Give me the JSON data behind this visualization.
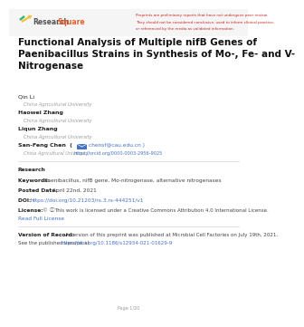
{
  "page_bg": "#ffffff",
  "header_bg": "#f7f7f7",
  "title": "Functional Analysis of Multiple nifB Genes of\nPaenibacillus Strains in Synthesis of Mo-, Fe- and V-\nNitrogenase",
  "title_fontsize": 7.5,
  "title_color": "#111111",
  "header_note_lines": [
    "Preprints are preliminary reports that have not undergone peer review.",
    "They should not be considered conclusive, used to inform clinical practice,",
    "or referenced by the media as validated information."
  ],
  "header_note_color": "#cc2222",
  "header_note_fontsize": 3.0,
  "logo_research": "Research",
  "logo_square": "Square",
  "email_text": "chensf@cau.edu.cn",
  "orcid_text": "https://orcid.org/0000-0003-2956-9025",
  "section_label": "Research",
  "keywords_label": "Keywords:",
  "keywords_text": "Paenibacillus, nifB gene, Mo-nitrogenase, alternative nitrogenases",
  "posted_label": "Posted Date:",
  "posted_text": "April 22nd, 2021",
  "doi_label": "DOI:",
  "doi_text": "https://doi.org/10.21203/rs.3.rs-444251/v1",
  "license_label": "License:",
  "license_cc": "© ⓘ",
  "license_text": "This work is licensed under a Creative Commons Attribution 4.0 International License.",
  "read_license": "Read Full License",
  "version_label": "Version of Record:",
  "version_line1": "A version of this preprint was published at Microbial Cell Factories on July 19th, 2021.",
  "version_line2": "See the published version at ",
  "version_url": "https://doi.org/10.1186/s12934-021-01629-9",
  "page_note": "Page 1/20",
  "link_color": "#4472c4",
  "gray_color": "#999999",
  "text_color": "#444444",
  "dark_color": "#222222",
  "sep_color": "#dddddd",
  "logo_gray": "#555555",
  "logo_orange": "#e8602c"
}
